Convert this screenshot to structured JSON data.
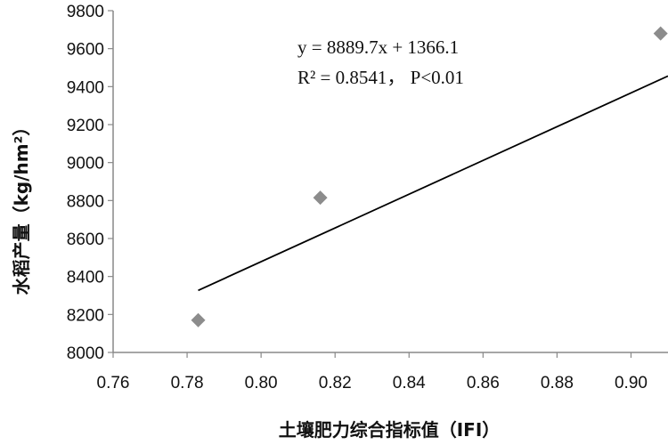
{
  "chart_data": {
    "type": "scatter",
    "title": "",
    "xlabel": "土壤肥力综合指标值（IFI）",
    "ylabel": "水稻产量（kg/hm²）",
    "xlim": [
      0.76,
      0.91
    ],
    "ylim": [
      8000,
      9800
    ],
    "x_ticks": [
      "0.76",
      "0.78",
      "0.80",
      "0.82",
      "0.84",
      "0.86",
      "0.88",
      "0.90"
    ],
    "y_ticks": [
      "8000",
      "8200",
      "8400",
      "8600",
      "8800",
      "9000",
      "9200",
      "9400",
      "9600",
      "9800"
    ],
    "points": [
      {
        "x": 0.783,
        "y": 8170
      },
      {
        "x": 0.816,
        "y": 8815
      },
      {
        "x": 0.908,
        "y": 9680
      }
    ],
    "trendline": {
      "x": [
        0.783,
        0.91
      ],
      "slope": 8889.7,
      "intercept": 1366.1
    },
    "annotation": {
      "equation": "y = 8889.7x + 1366.1",
      "r_squared": "R² = 0.8541， P<0.01"
    },
    "grid": false,
    "colors": {
      "marker": "#8c8c8c",
      "line": "#000000",
      "axis": "#888888"
    }
  }
}
